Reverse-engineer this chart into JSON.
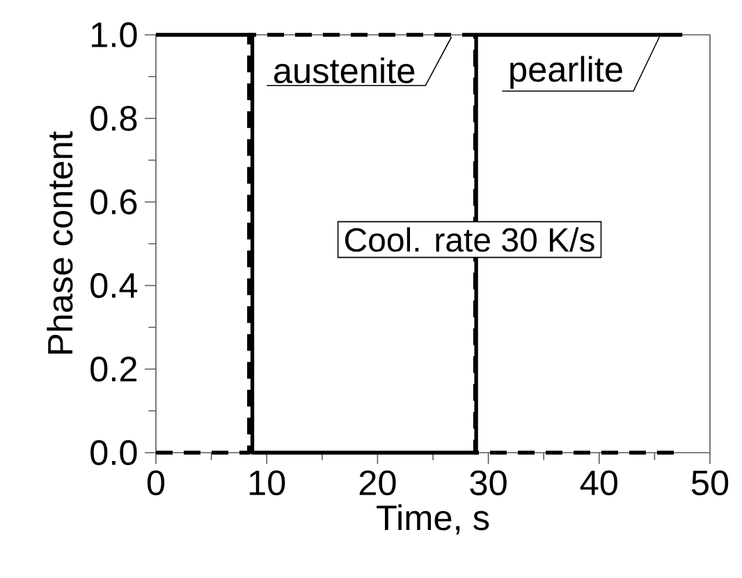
{
  "chart_data": {
    "type": "line",
    "xlabel": "Time, s",
    "ylabel": "Phase content",
    "xlim": [
      0,
      50
    ],
    "ylim": [
      0,
      1
    ],
    "xticks": [
      0,
      10,
      20,
      30,
      40,
      50
    ],
    "yticks": [
      {
        "value": 0,
        "label": "0.0"
      },
      {
        "value": 0.2,
        "label": "0.2"
      },
      {
        "value": 0.4,
        "label": "0.4"
      },
      {
        "value": 0.6,
        "label": "0.6"
      },
      {
        "value": 0.8,
        "label": "0.8"
      },
      {
        "value": 1,
        "label": "1.0"
      }
    ],
    "series": [
      {
        "name": "austenite",
        "color": "#000000",
        "line_style": "dashed",
        "x": [
          0,
          8.4,
          8.4,
          28.8,
          28.8,
          47.5
        ],
        "values": [
          0,
          0,
          1,
          1,
          0,
          0
        ]
      },
      {
        "name": "pearlite",
        "color": "#000000",
        "line_style": "solid",
        "x": [
          0,
          8.7,
          8.7,
          28.9,
          28.9,
          47.5
        ],
        "values": [
          1,
          1,
          0,
          0,
          1,
          1
        ]
      }
    ],
    "annotations": [
      "Cool. rate 30 K/s"
    ]
  }
}
